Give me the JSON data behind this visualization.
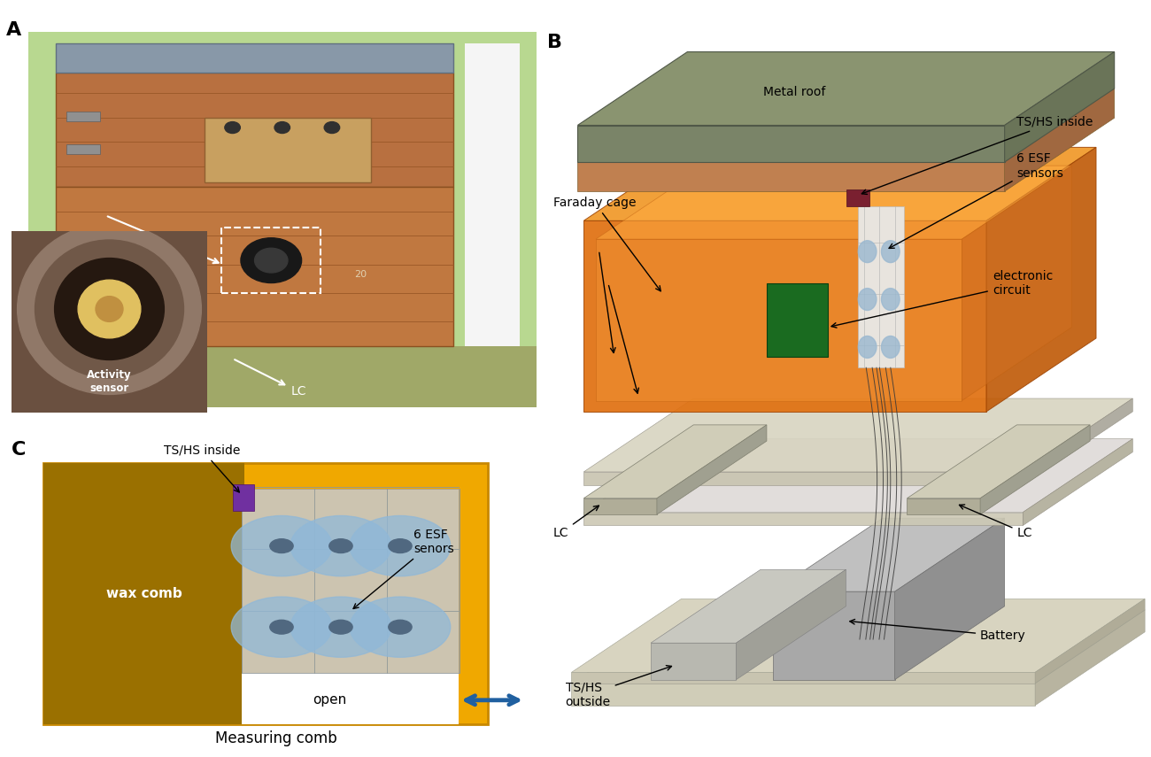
{
  "fig_width": 13.0,
  "fig_height": 8.55,
  "bg_color": "#ffffff",
  "panel_A_label": "A",
  "panel_B_label": "B",
  "panel_C_label": "C",
  "panel_C_title": "Measuring comb",
  "wax_color": "#9a7000",
  "frame_color": "#f0a800",
  "sensor_area_color": "#ccc4b0",
  "esf_color": "#90b8d8",
  "esf_dark": "#506880",
  "purple_color": "#7030a0",
  "arrow_blue": "#2060a0",
  "roof_gray": "#8a9070",
  "roof_dark": "#6a7050",
  "brown_wood": "#c08050",
  "orange_fc": "#e87010",
  "orange_fc_top": "#f09020",
  "orange_fc_right": "#c06010",
  "lc_color": "#d0cdb8",
  "lc_dark": "#b0ad98",
  "base_color": "#e0dcc8",
  "battery_gray": "#a8a8a8",
  "battery_top": "#c0c0c0",
  "battery_right": "#909090",
  "tshs_out_color": "#c0bfb0",
  "green_ec": "#1a6b20",
  "label_fontsize": 16,
  "annot_fontsize": 10
}
